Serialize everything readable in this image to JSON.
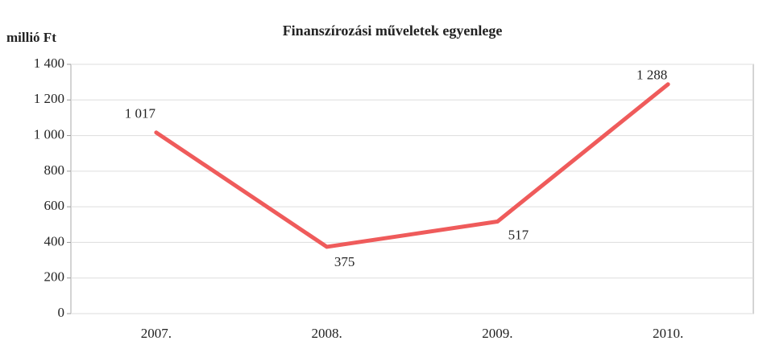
{
  "chart_data": {
    "type": "line",
    "title": "Finanszírozási műveletek egyenlege",
    "y_label": "millió Ft",
    "categories": [
      "2007.",
      "2008.",
      "2009.",
      "2010."
    ],
    "series": [
      {
        "name": null,
        "color": "#ef5b5b",
        "values": [
          1017,
          375,
          517,
          1288
        ],
        "value_labels": [
          "1 017",
          "375",
          "517",
          "1 288"
        ]
      }
    ],
    "ylim": [
      0,
      1400
    ],
    "yticks": [
      0,
      200,
      400,
      600,
      800,
      {
        "value": 1000,
        "label": "1 000"
      },
      {
        "value": 1200,
        "label": "1 200"
      },
      {
        "value": 1400,
        "label": "1 400"
      }
    ],
    "grid": true
  }
}
